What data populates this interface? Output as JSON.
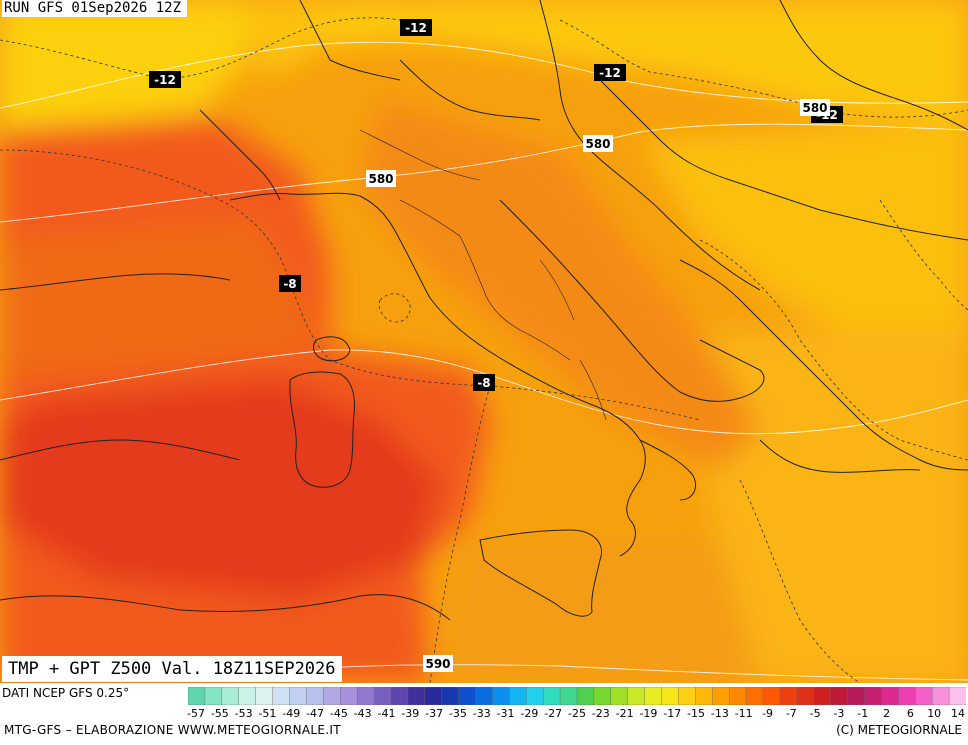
{
  "header": {
    "run_label": "RUN GFS 01Sep2026 12Z"
  },
  "map_title": "TMP + GPT Z500 Val. 18Z11SEP2026",
  "source_label": "DATI NCEP GFS 0.25°",
  "footer": {
    "left": "MTG-GFS – ELABORAZIONE WWW.METEOGIORNALE.IT",
    "right": "(C) METEOGIORNALE"
  },
  "isotherm_labels": [
    {
      "text": "-12"
    },
    {
      "text": "-12"
    },
    {
      "text": "-12"
    },
    {
      "text": "-12"
    },
    {
      "text": "-8"
    },
    {
      "text": "-8"
    }
  ],
  "geopotential_labels": [
    {
      "text": "580"
    },
    {
      "text": "580"
    },
    {
      "text": "580"
    },
    {
      "text": "590"
    }
  ],
  "legend": {
    "tick_labels": [
      "-57",
      "-55",
      "-53",
      "-51",
      "-49",
      "-47",
      "-45",
      "-43",
      "-41",
      "-39",
      "-37",
      "-35",
      "-33",
      "-31",
      "-29",
      "-27",
      "-25",
      "-23",
      "-21",
      "-19",
      "-17",
      "-15",
      "-13",
      "-11",
      "-9",
      "-7",
      "-5",
      "-3",
      "-1",
      "2",
      "6",
      "10",
      "14"
    ],
    "colors": [
      "#5fd6b0",
      "#86e3c4",
      "#a8ecd6",
      "#c8f3e6",
      "#dcf2f0",
      "#cfe0f2",
      "#c0d0f0",
      "#b8c0ec",
      "#b4a8e4",
      "#a890dc",
      "#9478d0",
      "#7a5ec0",
      "#5e46ae",
      "#40309c",
      "#2a2a9a",
      "#1838b0",
      "#1050cc",
      "#0a6ee0",
      "#0a90ee",
      "#12b4f2",
      "#22d0ec",
      "#30dcc0",
      "#40d890",
      "#50d050",
      "#78d830",
      "#a0e028",
      "#c8e828",
      "#e8ec20",
      "#f6e618",
      "#fcd010",
      "#ffb808",
      "#ffa000",
      "#ff8800",
      "#ff7000",
      "#ff5808",
      "#f04010",
      "#e03018",
      "#d02020",
      "#c01838",
      "#b81c58",
      "#c82070",
      "#dc2890",
      "#ec40b0",
      "#f460c8",
      "#f890dc",
      "#fcc0ec"
    ]
  }
}
